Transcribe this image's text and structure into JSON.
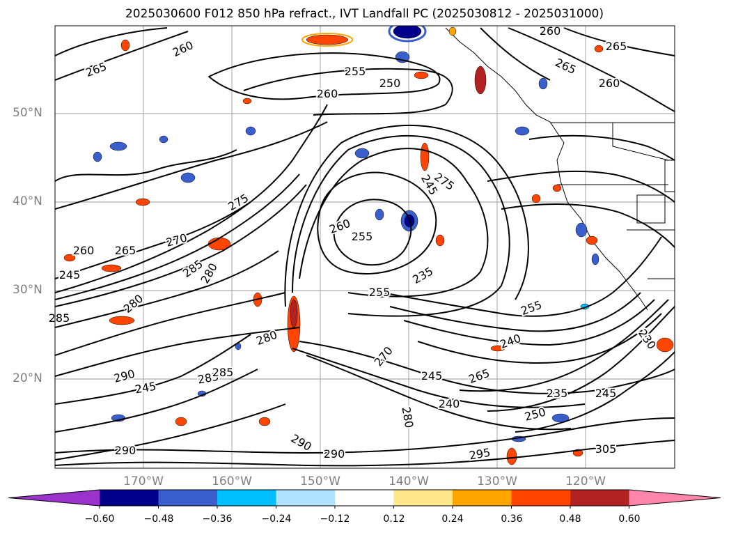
{
  "title": "2025030600 F012 850 hPa refract., IVT Landfall PC (2025030812 - 2025031000)",
  "axes": {
    "lat_labels": [
      "50°N",
      "40°N",
      "30°N",
      "20°N"
    ],
    "lon_labels": [
      "170°W",
      "160°W",
      "150°W",
      "140°W",
      "130°W",
      "120°W"
    ]
  },
  "colorbar": {
    "ticks": [
      "−0.60",
      "−0.48",
      "−0.36",
      "−0.24",
      "−0.12",
      "0.12",
      "0.24",
      "0.36",
      "0.48",
      "0.60"
    ],
    "colors": [
      "#9933cc",
      "#00008b",
      "#3a5fcd",
      "#00bfff",
      "#b0e2ff",
      "#ffffff",
      "#ffe78c",
      "#ffa500",
      "#ff4500",
      "#b22222",
      "#ff85aa"
    ]
  },
  "contour_labels": [
    "265",
    "260",
    "255",
    "250",
    "260",
    "265",
    "260",
    "265",
    "260",
    "275",
    "245",
    "275",
    "260",
    "255",
    "255",
    "285",
    "280",
    "270",
    "265",
    "260",
    "245",
    "290",
    "285",
    "285",
    "280",
    "280",
    "270",
    "265",
    "240",
    "255",
    "235",
    "245",
    "240",
    "230",
    "245",
    "290",
    "295",
    "305",
    "285",
    "280",
    "290",
    "290",
    "250",
    "245",
    "235"
  ]
}
